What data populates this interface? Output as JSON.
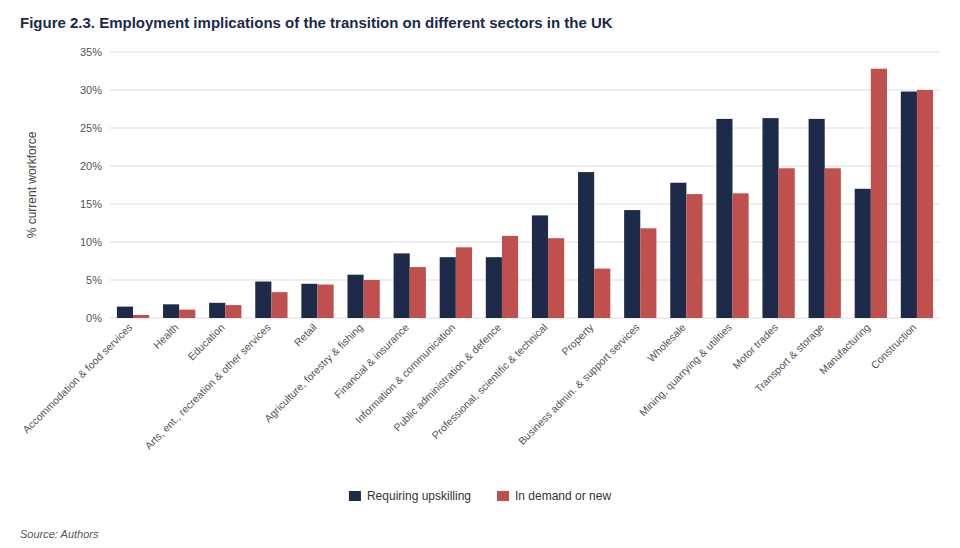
{
  "chart_data": {
    "type": "bar",
    "title": "Figure 2.3. Employment implications of the transition on different sectors in the UK",
    "ylabel": "% current workforce",
    "source": "Source: Authors",
    "categories": [
      "Accommodation & food services",
      "Health",
      "Education",
      "Arts, ent., recreation & other services",
      "Retail",
      "Agriculture, forestry & fishing",
      "Financial & insurance",
      "Information & communication",
      "Public administration & defence",
      "Professional, scientific & technical",
      "Property",
      "Business admin. & support services",
      "Wholesale",
      "Mining, quarrying & utilities",
      "Motor trades",
      "Transport & storage",
      "Manufacturing",
      "Construction"
    ],
    "series": [
      {
        "name": "Requiring upskilling",
        "color": "#1e2a4a",
        "values": [
          1.5,
          1.8,
          2.0,
          4.8,
          4.5,
          5.7,
          8.5,
          8.0,
          8.0,
          13.5,
          19.2,
          14.2,
          17.8,
          26.2,
          26.3,
          26.2,
          17.0,
          29.8
        ]
      },
      {
        "name": "In demand or new",
        "color": "#c0504d",
        "values": [
          0.4,
          1.1,
          1.7,
          3.4,
          4.4,
          5.0,
          6.7,
          9.3,
          10.8,
          10.5,
          6.5,
          11.8,
          16.3,
          16.4,
          19.7,
          19.7,
          32.8,
          30.0
        ]
      }
    ],
    "ylim": [
      0,
      35
    ],
    "yticks": [
      {
        "value": 0,
        "label": "0%"
      },
      {
        "value": 5,
        "label": "5%"
      },
      {
        "value": 10,
        "label": "10%"
      },
      {
        "value": 15,
        "label": "15%"
      },
      {
        "value": 20,
        "label": "20%"
      },
      {
        "value": 25,
        "label": "25%"
      },
      {
        "value": 30,
        "label": "30%"
      },
      {
        "value": 35,
        "label": "35%"
      }
    ],
    "grid": true,
    "legend": "bottom"
  }
}
